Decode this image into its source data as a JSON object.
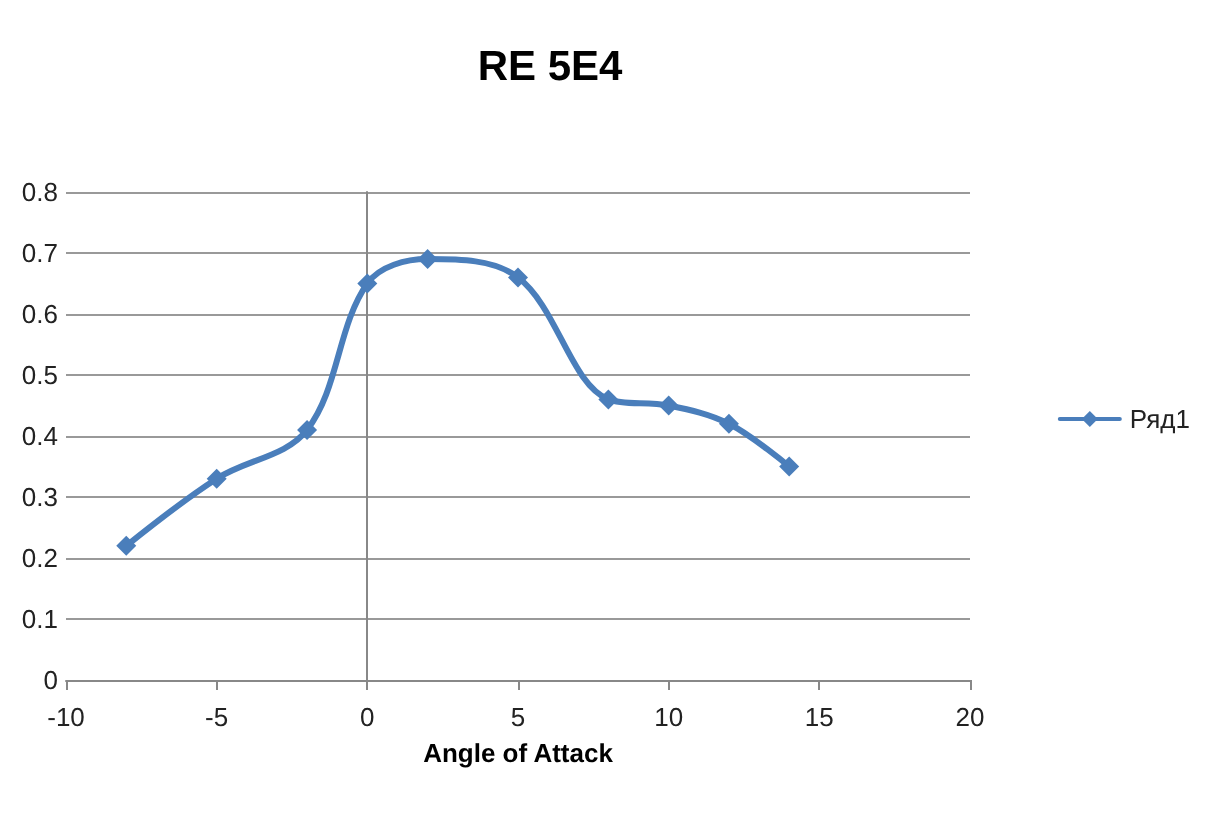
{
  "chart_data": {
    "type": "line",
    "title": "RE 5E4",
    "xlabel": "Angle of Attack",
    "x": [
      -8,
      -5,
      -2,
      0,
      2,
      5,
      8,
      10,
      12,
      14
    ],
    "series": [
      {
        "name": "Ряд1",
        "color": "#4a7ebb",
        "values": [
          0.22,
          0.33,
          0.41,
          0.65,
          0.69,
          0.66,
          0.46,
          0.45,
          0.42,
          0.35
        ]
      }
    ],
    "xlim": [
      -10,
      20
    ],
    "xticks": [
      -10,
      -5,
      0,
      5,
      10,
      15,
      20
    ],
    "ylim": [
      0,
      0.8
    ],
    "yticks": [
      0,
      0.1,
      0.2,
      0.3,
      0.4,
      0.5,
      0.6,
      0.7,
      0.8
    ],
    "grid": "y",
    "legend": "right",
    "marker": "diamond",
    "line_style": "solid"
  }
}
